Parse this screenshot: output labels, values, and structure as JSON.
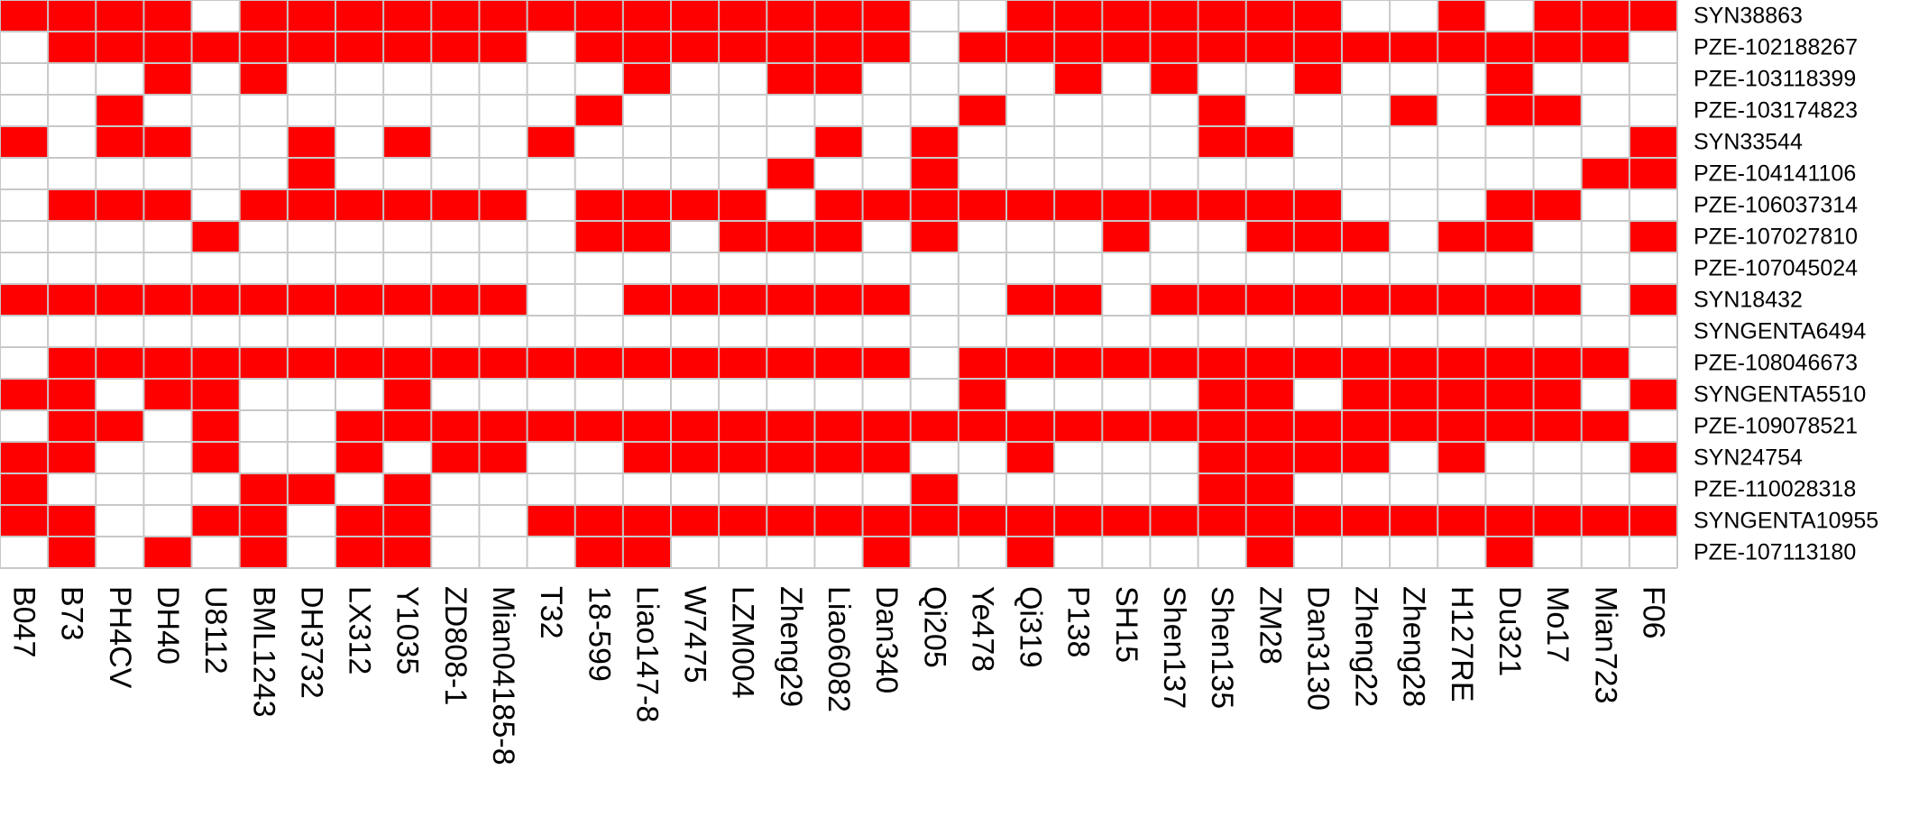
{
  "colors": {
    "present": "#ff0000",
    "absent": "#ffffff",
    "grid": "#c8c8c8"
  },
  "chart_data": {
    "type": "heatmap",
    "title": "",
    "xlabel": "",
    "ylabel": "",
    "legend": "none",
    "grid": true,
    "columns": [
      "B047",
      "B73",
      "PH4CV",
      "DH40",
      "U8112",
      "BML1243",
      "DH3732",
      "LX312",
      "Y1035",
      "ZD808-1",
      "Mian04185-8",
      "T32",
      "18-599",
      "Liao147-8",
      "W7475",
      "LZM004",
      "Zheng29",
      "Liao6082",
      "Dan340",
      "Qi205",
      "Ye478",
      "Qi319",
      "P138",
      "SH15",
      "Shen137",
      "Shen135",
      "ZM28",
      "Dan3130",
      "Zheng22",
      "Zheng28",
      "H127RE",
      "Du321",
      "Mo17",
      "Mian723",
      "F06"
    ],
    "rows": [
      "SYN38863",
      "PZE-102188267",
      "PZE-103118399",
      "PZE-103174823",
      "SYN33544",
      "PZE-104141106",
      "PZE-106037314",
      "PZE-107027810",
      "PZE-107045024",
      "SYN18432",
      "SYNGENTA6494",
      "PZE-108046673",
      "SYNGENTA5510",
      "PZE-109078521",
      "SYN24754",
      "PZE-110028318",
      "SYNGENTA10955",
      "PZE-107113180"
    ],
    "values": [
      [
        1,
        1,
        1,
        1,
        0,
        1,
        1,
        1,
        1,
        1,
        1,
        1,
        1,
        1,
        1,
        1,
        1,
        1,
        1,
        0,
        0,
        1,
        1,
        1,
        1,
        1,
        1,
        1,
        0,
        0,
        1,
        0,
        1,
        1,
        1
      ],
      [
        0,
        1,
        1,
        1,
        1,
        1,
        1,
        1,
        1,
        1,
        1,
        0,
        1,
        1,
        1,
        1,
        1,
        1,
        1,
        0,
        1,
        1,
        1,
        1,
        1,
        1,
        1,
        1,
        1,
        1,
        1,
        1,
        1,
        1,
        0
      ],
      [
        0,
        0,
        0,
        1,
        0,
        1,
        0,
        0,
        0,
        0,
        0,
        0,
        0,
        1,
        0,
        0,
        1,
        1,
        0,
        0,
        0,
        0,
        1,
        0,
        1,
        0,
        0,
        1,
        0,
        0,
        0,
        1,
        0,
        0,
        0
      ],
      [
        0,
        0,
        1,
        0,
        0,
        0,
        0,
        0,
        0,
        0,
        0,
        0,
        1,
        0,
        0,
        0,
        0,
        0,
        0,
        0,
        1,
        0,
        0,
        0,
        0,
        1,
        0,
        0,
        0,
        1,
        0,
        1,
        1,
        0,
        0
      ],
      [
        1,
        0,
        1,
        1,
        0,
        0,
        1,
        0,
        1,
        0,
        0,
        1,
        0,
        0,
        0,
        0,
        0,
        1,
        0,
        1,
        0,
        0,
        0,
        0,
        0,
        1,
        1,
        0,
        0,
        0,
        0,
        0,
        0,
        0,
        1
      ],
      [
        0,
        0,
        0,
        0,
        0,
        0,
        1,
        0,
        0,
        0,
        0,
        0,
        0,
        0,
        0,
        0,
        1,
        0,
        0,
        1,
        0,
        0,
        0,
        0,
        0,
        0,
        0,
        0,
        0,
        0,
        0,
        0,
        0,
        1,
        1
      ],
      [
        0,
        1,
        1,
        1,
        0,
        1,
        1,
        1,
        1,
        1,
        1,
        0,
        1,
        1,
        1,
        1,
        0,
        1,
        1,
        1,
        1,
        1,
        1,
        1,
        1,
        1,
        1,
        1,
        0,
        0,
        0,
        1,
        1,
        0,
        0
      ],
      [
        0,
        0,
        0,
        0,
        1,
        0,
        0,
        0,
        0,
        0,
        0,
        0,
        1,
        1,
        0,
        1,
        1,
        1,
        0,
        1,
        0,
        0,
        0,
        1,
        0,
        0,
        1,
        1,
        1,
        0,
        1,
        1,
        0,
        0,
        1
      ],
      [
        0,
        0,
        0,
        0,
        0,
        0,
        0,
        0,
        0,
        0,
        0,
        0,
        0,
        0,
        0,
        0,
        0,
        0,
        0,
        0,
        0,
        0,
        0,
        0,
        0,
        0,
        0,
        0,
        0,
        0,
        0,
        0,
        0,
        0,
        0
      ],
      [
        1,
        1,
        1,
        1,
        1,
        1,
        1,
        1,
        1,
        1,
        1,
        0,
        0,
        1,
        1,
        1,
        1,
        1,
        1,
        0,
        0,
        1,
        1,
        0,
        1,
        1,
        1,
        1,
        1,
        1,
        1,
        1,
        1,
        0,
        1
      ],
      [
        0,
        0,
        0,
        0,
        0,
        0,
        0,
        0,
        0,
        0,
        0,
        0,
        0,
        0,
        0,
        0,
        0,
        0,
        0,
        0,
        0,
        0,
        0,
        0,
        0,
        0,
        0,
        0,
        0,
        0,
        0,
        0,
        0,
        0,
        0
      ],
      [
        0,
        1,
        1,
        1,
        1,
        1,
        1,
        1,
        1,
        1,
        1,
        1,
        1,
        1,
        1,
        1,
        1,
        1,
        1,
        0,
        1,
        1,
        1,
        1,
        1,
        1,
        1,
        1,
        1,
        1,
        1,
        1,
        1,
        1,
        0
      ],
      [
        1,
        1,
        0,
        1,
        1,
        0,
        0,
        0,
        1,
        0,
        0,
        0,
        0,
        0,
        0,
        0,
        0,
        0,
        0,
        0,
        1,
        0,
        0,
        0,
        0,
        1,
        1,
        0,
        1,
        1,
        1,
        1,
        1,
        0,
        1
      ],
      [
        0,
        1,
        1,
        0,
        1,
        0,
        0,
        1,
        1,
        1,
        1,
        1,
        1,
        1,
        1,
        1,
        1,
        1,
        1,
        1,
        1,
        1,
        1,
        1,
        1,
        1,
        1,
        1,
        1,
        1,
        1,
        1,
        1,
        1,
        0
      ],
      [
        1,
        1,
        0,
        0,
        1,
        0,
        0,
        1,
        0,
        1,
        1,
        0,
        0,
        1,
        1,
        1,
        1,
        1,
        1,
        0,
        0,
        1,
        0,
        0,
        0,
        1,
        1,
        1,
        1,
        0,
        1,
        0,
        0,
        0,
        1
      ],
      [
        1,
        0,
        0,
        0,
        0,
        1,
        1,
        0,
        1,
        0,
        0,
        0,
        0,
        0,
        0,
        0,
        0,
        0,
        0,
        1,
        0,
        0,
        0,
        0,
        0,
        1,
        1,
        0,
        0,
        0,
        0,
        0,
        0,
        0,
        0
      ],
      [
        1,
        1,
        0,
        0,
        1,
        1,
        0,
        1,
        1,
        0,
        0,
        1,
        1,
        1,
        1,
        1,
        1,
        1,
        1,
        1,
        1,
        1,
        1,
        1,
        1,
        1,
        1,
        1,
        1,
        1,
        1,
        1,
        1,
        1,
        1
      ],
      [
        0,
        1,
        0,
        1,
        0,
        1,
        0,
        1,
        1,
        0,
        0,
        0,
        1,
        1,
        0,
        0,
        0,
        0,
        1,
        0,
        0,
        1,
        0,
        0,
        0,
        0,
        1,
        0,
        0,
        0,
        0,
        1,
        0,
        0,
        0
      ]
    ]
  }
}
